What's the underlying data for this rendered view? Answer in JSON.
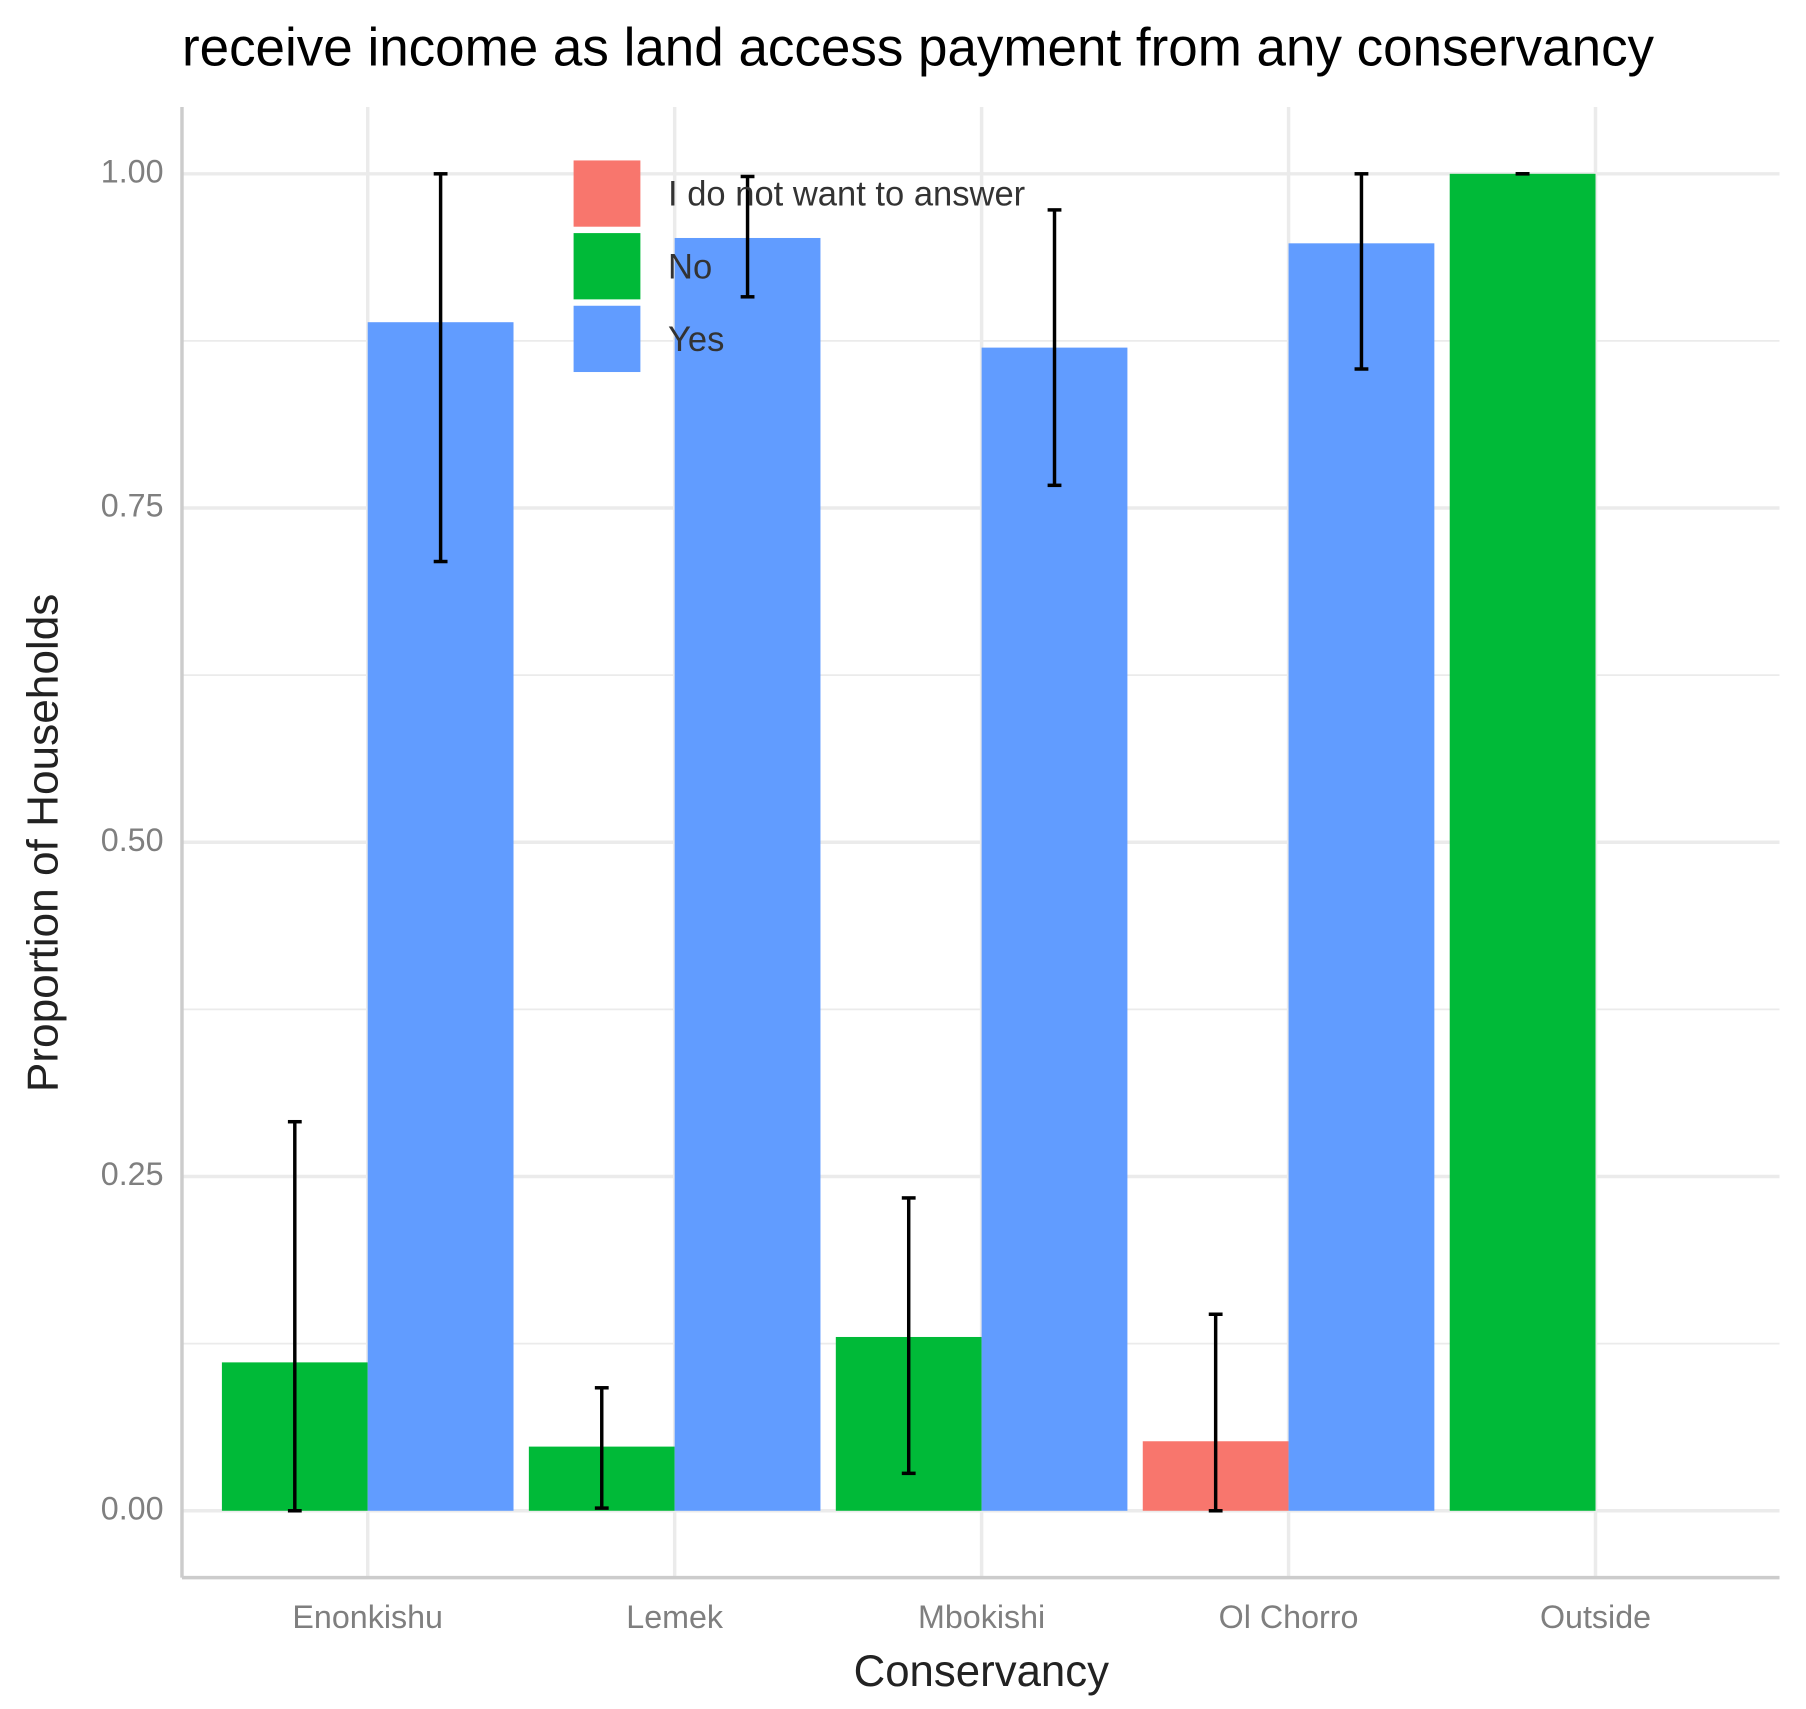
{
  "chart_data": {
    "type": "bar",
    "title": "receive income as land access payment from any conservancy",
    "x_label": "Conservancy",
    "y_label": "Proportion of Households",
    "categories": [
      "Enonkishu",
      "Lemek",
      "Mbokishi",
      "Ol Chorro",
      "Outside"
    ],
    "series": [
      {
        "name": "I do not want to answer",
        "color": "#f8766d",
        "values": [
          null,
          null,
          null,
          0.052,
          null
        ],
        "lower": [
          null,
          null,
          null,
          0.0,
          null
        ],
        "upper": [
          null,
          null,
          null,
          0.147,
          null
        ]
      },
      {
        "name": "No",
        "color": "#00ba38",
        "values": [
          0.111,
          0.048,
          0.13,
          null,
          1.0
        ],
        "lower": [
          0.0,
          0.002,
          0.028,
          null,
          1.0
        ],
        "upper": [
          0.291,
          0.092,
          0.234,
          null,
          1.0
        ]
      },
      {
        "name": "Yes",
        "color": "#619cff",
        "values": [
          0.889,
          0.952,
          0.87,
          0.948,
          null
        ],
        "lower": [
          0.71,
          0.908,
          0.767,
          0.854,
          null
        ],
        "upper": [
          1.0,
          0.998,
          0.973,
          1.0,
          null
        ]
      }
    ],
    "ylim": [
      -0.05,
      1.05
    ],
    "yticks": [
      {
        "value": 0,
        "label": "0.00"
      },
      {
        "value": 0.25,
        "label": "0.25"
      },
      {
        "value": 0.5,
        "label": "0.50"
      },
      {
        "value": 0.75,
        "label": "0.75"
      },
      {
        "value": 1,
        "label": "1.00"
      }
    ],
    "y_minor_ticks": [
      0.125,
      0.375,
      0.625,
      0.875
    ],
    "grid": true
  }
}
